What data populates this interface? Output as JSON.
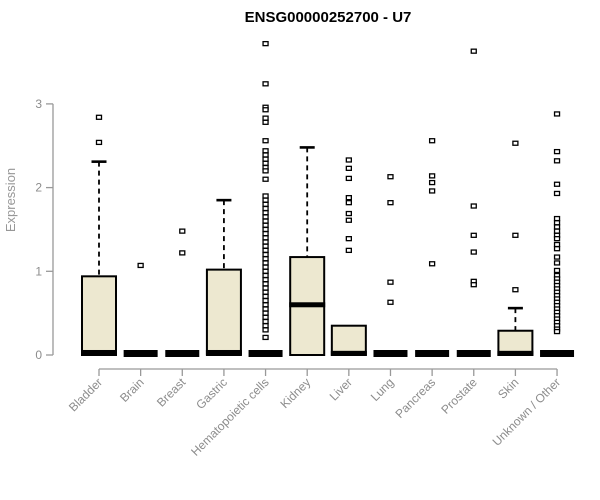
{
  "chart_data": {
    "type": "boxplot",
    "title": "ENSG00000252700 - U7",
    "xlabel": "",
    "ylabel": "Expression",
    "ylim": [
      0,
      3.75
    ],
    "yticks": [
      0,
      1,
      2,
      3
    ],
    "grid": false,
    "legend": false,
    "box_fill": "#ede8d0",
    "box_stroke": "#000000",
    "axis_color": "#999999",
    "label_color": "#8c8c8c",
    "categories": [
      "Bladder",
      "Brain",
      "Breast",
      "Gastric",
      "Hematopoietic cells",
      "Kidney",
      "Liver",
      "Lung",
      "Pancreas",
      "Prostate",
      "Skin",
      "Unknown / Other"
    ],
    "boxes": [
      {
        "category": "Bladder",
        "q1": 0,
        "median": 0.03,
        "q3": 0.94,
        "whisker_low": 0,
        "whisker_high": 2.31,
        "outliers": [
          2.84,
          2.54
        ]
      },
      {
        "category": "Brain",
        "q1": 0,
        "median": 0,
        "q3": 0,
        "whisker_low": 0,
        "whisker_high": 0,
        "outliers": [
          1.07
        ]
      },
      {
        "category": "Breast",
        "q1": 0,
        "median": 0,
        "q3": 0,
        "whisker_low": 0,
        "whisker_high": 0,
        "outliers": [
          1.48,
          1.22
        ]
      },
      {
        "category": "Gastric",
        "q1": 0,
        "median": 0.03,
        "q3": 1.02,
        "whisker_low": 0,
        "whisker_high": 1.85,
        "outliers": []
      },
      {
        "category": "Hematopoietic cells",
        "q1": 0,
        "median": 0,
        "q3": 0,
        "whisker_low": 0,
        "whisker_high": 0,
        "outliers": [
          3.72,
          3.24,
          2.96,
          2.93,
          2.83,
          2.78,
          2.56,
          2.44,
          2.39,
          2.34,
          2.29,
          2.24,
          2.2,
          2.1,
          1.9,
          1.85,
          1.8,
          1.75,
          1.7,
          1.65,
          1.6,
          1.55,
          1.5,
          1.45,
          1.4,
          1.35,
          1.3,
          1.25,
          1.2,
          1.15,
          1.1,
          1.05,
          1.0,
          0.95,
          0.9,
          0.85,
          0.8,
          0.75,
          0.7,
          0.65,
          0.6,
          0.55,
          0.5,
          0.45,
          0.4,
          0.35,
          0.3,
          0.21
        ]
      },
      {
        "category": "Kidney",
        "q1": 0,
        "median": 0.6,
        "q3": 1.17,
        "whisker_low": 0,
        "whisker_high": 2.48,
        "outliers": []
      },
      {
        "category": "Liver",
        "q1": 0,
        "median": 0.02,
        "q3": 0.35,
        "whisker_low": 0,
        "whisker_high": 0.35,
        "outliers": [
          2.33,
          2.23,
          2.11,
          1.88,
          1.82,
          1.69,
          1.61,
          1.39,
          1.25
        ]
      },
      {
        "category": "Lung",
        "q1": 0,
        "median": 0,
        "q3": 0,
        "whisker_low": 0,
        "whisker_high": 0,
        "outliers": [
          2.13,
          1.82,
          0.87,
          0.63
        ]
      },
      {
        "category": "Pancreas",
        "q1": 0,
        "median": 0,
        "q3": 0,
        "whisker_low": 0,
        "whisker_high": 0,
        "outliers": [
          2.56,
          2.14,
          2.06,
          1.96,
          1.09
        ]
      },
      {
        "category": "Prostate",
        "q1": 0,
        "median": 0,
        "q3": 0,
        "whisker_low": 0,
        "whisker_high": 0,
        "outliers": [
          3.63,
          1.78,
          1.43,
          1.23,
          0.88,
          0.84
        ]
      },
      {
        "category": "Skin",
        "q1": 0,
        "median": 0.02,
        "q3": 0.29,
        "whisker_low": 0,
        "whisker_high": 0.56,
        "outliers": [
          2.53,
          1.43,
          0.78
        ]
      },
      {
        "category": "Unknown / Other",
        "q1": 0,
        "median": 0,
        "q3": 0,
        "whisker_low": 0,
        "whisker_high": 0,
        "outliers": [
          2.88,
          2.43,
          2.32,
          2.04,
          1.93,
          1.63,
          1.58,
          1.53,
          1.48,
          1.43,
          1.39,
          1.32,
          1.27,
          1.17,
          1.1,
          1.01,
          0.95,
          0.91,
          0.87,
          0.83,
          0.79,
          0.75,
          0.71,
          0.67,
          0.63,
          0.59,
          0.55,
          0.51,
          0.47,
          0.43,
          0.39,
          0.35,
          0.31,
          0.28
        ]
      }
    ]
  }
}
